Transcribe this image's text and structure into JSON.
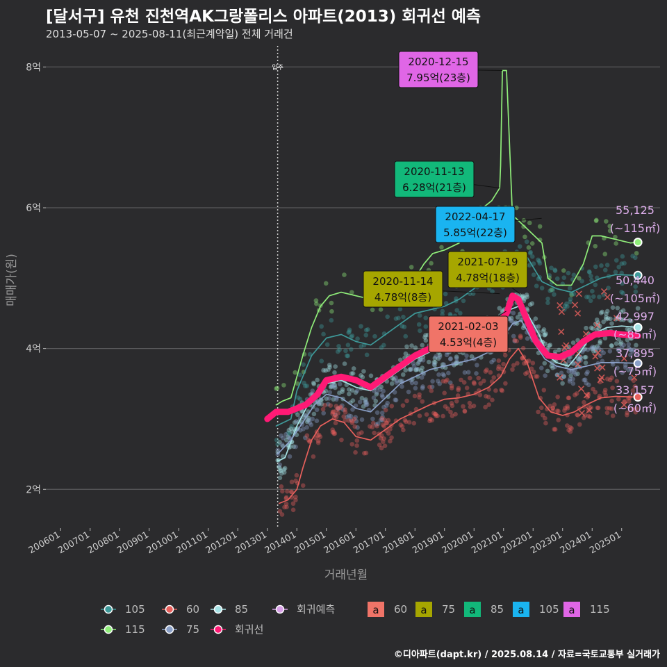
{
  "header": {
    "title": "[달서구] 유천 진천역AK그랑폴리스 아파트(2013) 회귀선 예측",
    "subtitle": "2013-05-07 ~ 2025-08-11(최근계약일) 전체 거래건"
  },
  "footer": {
    "credit": "©디아파트(dapt.kr) / 2025.08.14 / 자료=국토교통부 실거래가"
  },
  "chart_data": {
    "type": "line",
    "title": "[달서구] 유천 진천역AK그랑폴리스 아파트(2013) 회귀선 예측",
    "subtitle": "2013-05-07 ~ 2025-08-11(최근계약일) 전체 거래건",
    "xlabel": "거래년월",
    "ylabel": "매매가(원)",
    "x_range": [
      2005.5,
      2026.3
    ],
    "ylim": [
      1.45,
      8.3
    ],
    "y_ticks": [
      2,
      4,
      6,
      8
    ],
    "y_tick_labels": [
      "2억",
      "4억",
      "6억",
      "8억"
    ],
    "x_ticks": [
      2006,
      2007,
      2008,
      2009,
      2010,
      2011,
      2012,
      2013,
      2014,
      2015,
      2016,
      2017,
      2018,
      2019,
      2020,
      2021,
      2022,
      2023,
      2024,
      2025
    ],
    "x_tick_labels": [
      "200601",
      "200701",
      "200801",
      "200901",
      "201001",
      "201101",
      "201201",
      "201301",
      "201401",
      "201501",
      "201601",
      "201701",
      "201801",
      "201901",
      "202001",
      "202101",
      "202201",
      "202301",
      "202401",
      "202501"
    ],
    "grid": true,
    "vline": {
      "x": 2013.35,
      "label": "입주"
    },
    "series": [
      {
        "name": "115",
        "color": "#90ee7a",
        "points": [
          [
            2013.3,
            3.2
          ],
          [
            2013.5,
            3.25
          ],
          [
            2013.8,
            3.3
          ],
          [
            2014.0,
            3.6
          ],
          [
            2014.2,
            3.9
          ],
          [
            2014.5,
            4.3
          ],
          [
            2014.8,
            4.6
          ],
          [
            2015.1,
            4.75
          ],
          [
            2015.5,
            4.8
          ],
          [
            2016.0,
            4.75
          ],
          [
            2016.5,
            4.7
          ],
          [
            2017.0,
            4.72
          ],
          [
            2017.5,
            4.78
          ],
          [
            2017.8,
            4.9
          ],
          [
            2018.0,
            5.0
          ],
          [
            2018.3,
            5.2
          ],
          [
            2018.6,
            5.35
          ],
          [
            2019.0,
            5.4
          ],
          [
            2019.5,
            5.5
          ],
          [
            2020.0,
            5.8
          ],
          [
            2020.3,
            6.0
          ],
          [
            2020.6,
            6.1
          ],
          [
            2020.87,
            6.28
          ],
          [
            2020.9,
            6.6
          ],
          [
            2020.96,
            7.95
          ],
          [
            2021.1,
            7.95
          ],
          [
            2021.3,
            5.9
          ],
          [
            2021.8,
            5.7
          ],
          [
            2022.3,
            5.5
          ],
          [
            2022.5,
            5.0
          ],
          [
            2022.8,
            4.9
          ],
          [
            2023.3,
            4.9
          ],
          [
            2023.7,
            5.2
          ],
          [
            2024.0,
            5.6
          ],
          [
            2024.3,
            5.6
          ],
          [
            2024.8,
            5.55
          ],
          [
            2025.3,
            5.5
          ],
          [
            2025.55,
            5.51
          ]
        ]
      },
      {
        "name": "105",
        "color": "#3e9a9a",
        "points": [
          [
            2013.3,
            2.9
          ],
          [
            2013.8,
            3.0
          ],
          [
            2014.0,
            3.4
          ],
          [
            2014.5,
            3.9
          ],
          [
            2015.0,
            4.15
          ],
          [
            2015.5,
            4.2
          ],
          [
            2016.0,
            4.1
          ],
          [
            2016.5,
            4.05
          ],
          [
            2017.0,
            4.2
          ],
          [
            2017.5,
            4.35
          ],
          [
            2018.0,
            4.5
          ],
          [
            2018.5,
            4.55
          ],
          [
            2019.0,
            4.6
          ],
          [
            2019.5,
            4.7
          ],
          [
            2020.0,
            4.85
          ],
          [
            2020.5,
            5.0
          ],
          [
            2020.9,
            5.1
          ],
          [
            2021.3,
            5.3
          ],
          [
            2021.8,
            5.3
          ],
          [
            2022.3,
            4.95
          ],
          [
            2022.8,
            4.85
          ],
          [
            2023.3,
            4.8
          ],
          [
            2023.8,
            4.9
          ],
          [
            2024.3,
            5.0
          ],
          [
            2024.8,
            5.05
          ],
          [
            2025.55,
            5.04
          ]
        ]
      },
      {
        "name": "85",
        "color": "#a6e3e6",
        "points": [
          [
            2013.35,
            2.4
          ],
          [
            2013.6,
            2.45
          ],
          [
            2014.0,
            2.9
          ],
          [
            2014.5,
            3.3
          ],
          [
            2015.0,
            3.5
          ],
          [
            2015.5,
            3.55
          ],
          [
            2016.0,
            3.45
          ],
          [
            2016.5,
            3.4
          ],
          [
            2017.0,
            3.55
          ],
          [
            2017.5,
            3.7
          ],
          [
            2018.0,
            3.85
          ],
          [
            2018.5,
            3.95
          ],
          [
            2019.0,
            4.0
          ],
          [
            2019.5,
            4.05
          ],
          [
            2020.0,
            4.1
          ],
          [
            2020.5,
            4.2
          ],
          [
            2020.9,
            4.35
          ],
          [
            2021.2,
            4.55
          ],
          [
            2021.5,
            4.6
          ],
          [
            2021.8,
            4.5
          ],
          [
            2022.2,
            4.2
          ],
          [
            2022.5,
            3.9
          ],
          [
            2022.8,
            3.8
          ],
          [
            2023.2,
            3.75
          ],
          [
            2023.6,
            3.95
          ],
          [
            2024.0,
            4.2
          ],
          [
            2024.5,
            4.3
          ],
          [
            2025.0,
            4.32
          ],
          [
            2025.55,
            4.3
          ]
        ]
      },
      {
        "name": "75",
        "color": "#8aa0c8",
        "points": [
          [
            2013.35,
            2.5
          ],
          [
            2013.8,
            2.7
          ],
          [
            2014.2,
            2.95
          ],
          [
            2014.6,
            3.2
          ],
          [
            2015.0,
            3.35
          ],
          [
            2015.5,
            3.3
          ],
          [
            2016.0,
            3.15
          ],
          [
            2016.5,
            3.1
          ],
          [
            2017.0,
            3.3
          ],
          [
            2017.5,
            3.5
          ],
          [
            2018.0,
            3.6
          ],
          [
            2018.5,
            3.7
          ],
          [
            2019.0,
            3.75
          ],
          [
            2019.5,
            3.8
          ],
          [
            2020.0,
            3.85
          ],
          [
            2020.5,
            3.95
          ],
          [
            2020.9,
            4.1
          ],
          [
            2021.3,
            4.35
          ],
          [
            2021.6,
            4.4
          ],
          [
            2022.0,
            4.1
          ],
          [
            2022.4,
            3.85
          ],
          [
            2022.8,
            3.75
          ],
          [
            2023.3,
            3.7
          ],
          [
            2023.8,
            3.75
          ],
          [
            2024.3,
            3.8
          ],
          [
            2024.8,
            3.8
          ],
          [
            2025.55,
            3.79
          ]
        ]
      },
      {
        "name": "60",
        "color": "#e8605c",
        "points": [
          [
            2013.4,
            1.8
          ],
          [
            2013.7,
            1.85
          ],
          [
            2014.0,
            2.0
          ],
          [
            2014.2,
            2.3
          ],
          [
            2014.5,
            2.7
          ],
          [
            2014.8,
            2.9
          ],
          [
            2015.2,
            3.0
          ],
          [
            2015.6,
            2.95
          ],
          [
            2016.0,
            2.75
          ],
          [
            2016.5,
            2.7
          ],
          [
            2017.0,
            2.85
          ],
          [
            2017.5,
            3.0
          ],
          [
            2018.0,
            3.1
          ],
          [
            2018.5,
            3.2
          ],
          [
            2019.0,
            3.28
          ],
          [
            2019.5,
            3.3
          ],
          [
            2020.0,
            3.35
          ],
          [
            2020.5,
            3.45
          ],
          [
            2020.9,
            3.6
          ],
          [
            2021.2,
            3.85
          ],
          [
            2021.5,
            4.0
          ],
          [
            2021.8,
            3.8
          ],
          [
            2022.2,
            3.3
          ],
          [
            2022.6,
            3.1
          ],
          [
            2023.0,
            3.05
          ],
          [
            2023.4,
            3.1
          ],
          [
            2023.8,
            3.2
          ],
          [
            2024.3,
            3.3
          ],
          [
            2024.8,
            3.32
          ],
          [
            2025.55,
            3.31
          ]
        ]
      },
      {
        "name": "회귀선",
        "color": "#ff1a75",
        "points": [
          [
            2013.0,
            3.0
          ],
          [
            2013.3,
            3.1
          ],
          [
            2013.7,
            3.1
          ],
          [
            2014.0,
            3.15
          ],
          [
            2014.3,
            3.2
          ],
          [
            2014.7,
            3.35
          ],
          [
            2015.0,
            3.55
          ],
          [
            2015.5,
            3.6
          ],
          [
            2016.0,
            3.55
          ],
          [
            2016.5,
            3.45
          ],
          [
            2017.0,
            3.6
          ],
          [
            2017.5,
            3.75
          ],
          [
            2018.0,
            3.9
          ],
          [
            2018.5,
            4.0
          ],
          [
            2019.0,
            4.05
          ],
          [
            2019.5,
            4.1
          ],
          [
            2020.0,
            4.15
          ],
          [
            2020.5,
            4.25
          ],
          [
            2020.9,
            4.4
          ],
          [
            2021.1,
            4.5
          ],
          [
            2021.3,
            4.75
          ],
          [
            2021.5,
            4.7
          ],
          [
            2021.8,
            4.4
          ],
          [
            2022.1,
            4.1
          ],
          [
            2022.5,
            3.9
          ],
          [
            2022.9,
            3.88
          ],
          [
            2023.3,
            3.95
          ],
          [
            2023.7,
            4.1
          ],
          [
            2024.1,
            4.2
          ],
          [
            2024.6,
            4.22
          ],
          [
            2025.0,
            4.2
          ],
          [
            2025.55,
            4.18
          ]
        ]
      }
    ],
    "annotations": [
      {
        "date": "2020-12-15",
        "value": "7.95억(23층)",
        "color": "#e066e6",
        "x": 2020.96,
        "y": 7.95
      },
      {
        "date": "2020-11-13",
        "value": "6.28억(21층)",
        "color": "#12b87a",
        "x": 2020.87,
        "y": 6.28
      },
      {
        "date": "2022-04-17",
        "value": "5.85억(22층)",
        "color": "#1ab4f0",
        "x": 2022.29,
        "y": 5.85
      },
      {
        "date": "2021-07-19",
        "value": "4.78억(18층)",
        "color": "#a6a600",
        "x": 2021.55,
        "y": 4.78
      },
      {
        "date": "2020-11-14",
        "value": "4.78억(8층)",
        "color": "#a6a600",
        "x": 2020.87,
        "y": 4.78
      },
      {
        "date": "2021-02-03",
        "value": "4.53억(4층)",
        "color": "#f07468",
        "x": 2021.09,
        "y": 4.53
      }
    ],
    "end_labels": [
      {
        "line1": "55,125",
        "line2": "(~115㎡)",
        "dot": "#90ee7a",
        "y": 5.51
      },
      {
        "line1": "50,440",
        "line2": "(~105㎡)",
        "dot": "#3e9a9a",
        "y": 5.04
      },
      {
        "line1": "42,997",
        "line2": "(~85㎡)",
        "dot": "#a6e3e6",
        "y": 4.3
      },
      {
        "line1": "37,895",
        "line2": "(~75㎡)",
        "dot": "#8aa0c8",
        "y": 3.79
      },
      {
        "line1": "33,157",
        "line2": "(~60㎡)",
        "dot": "#e8605c",
        "y": 3.31
      }
    ],
    "legend": {
      "placement": "bottom",
      "lines": [
        {
          "label": "105",
          "color": "#3e9a9a"
        },
        {
          "label": "60",
          "color": "#e8605c"
        },
        {
          "label": "85",
          "color": "#a6e3e6"
        },
        {
          "label": "회귀예측",
          "color": "#d8a0e8"
        },
        {
          "label": "115",
          "color": "#90ee7a"
        },
        {
          "label": "75",
          "color": "#8aa0c8"
        },
        {
          "label": "회귀선",
          "color": "#ff1a75"
        }
      ],
      "boxes_letter": "a",
      "boxes": [
        {
          "label": "60",
          "color": "#f07468"
        },
        {
          "label": "75",
          "color": "#a6a600"
        },
        {
          "label": "85",
          "color": "#12b87a"
        },
        {
          "label": "105",
          "color": "#1ab4f0"
        },
        {
          "label": "115",
          "color": "#e066e6"
        }
      ]
    }
  }
}
